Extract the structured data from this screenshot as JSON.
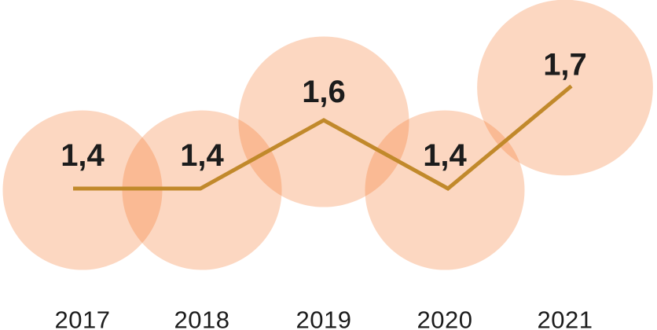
{
  "chart_data": {
    "type": "line",
    "subtype": "line-with-area-proportional-bubbles",
    "title": "",
    "xlabel": "",
    "ylabel": "",
    "categories": [
      "2017",
      "2018",
      "2019",
      "2020",
      "2021"
    ],
    "values": [
      1.4,
      1.4,
      1.6,
      1.4,
      1.7
    ],
    "value_labels": [
      "1,4",
      "1,4",
      "1,6",
      "1,4",
      "1,7"
    ],
    "decimal_separator": ",",
    "grid": false,
    "legend": false,
    "axes_visible": false,
    "colors": {
      "bubble_fill": "#F37021",
      "bubble_opacity": 0.28,
      "line": "#C1892B",
      "value_label": "#1C1C1C",
      "year_label": "#1C1C1C",
      "background": "#FFFFFF"
    }
  }
}
